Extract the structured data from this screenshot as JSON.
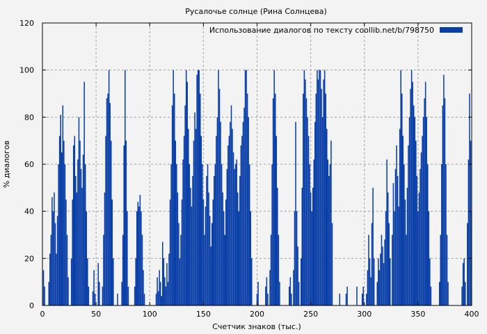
{
  "chart_data": {
    "type": "bar",
    "title": "Русалочье солнце (Рина Солнцева)",
    "xlabel": "Счетчик знаков (тыс.)",
    "ylabel": "% диалогов",
    "xlim": [
      0,
      400
    ],
    "ylim": [
      0,
      120
    ],
    "xticks": [
      0,
      50,
      100,
      150,
      200,
      250,
      300,
      350,
      400
    ],
    "yticks": [
      0,
      20,
      40,
      60,
      80,
      100,
      120
    ],
    "grid": true,
    "legend_position": "top-right",
    "color": "#0a3fa8",
    "series": [
      {
        "name": "Использование диалогов по тексту coollib.net/b/798750",
        "values": [
          [
            1,
            15
          ],
          [
            2,
            8
          ],
          [
            3,
            0
          ],
          [
            4,
            0
          ],
          [
            6,
            10
          ],
          [
            7,
            22
          ],
          [
            8,
            30
          ],
          [
            9,
            46
          ],
          [
            10,
            40
          ],
          [
            11,
            48
          ],
          [
            12,
            35
          ],
          [
            13,
            22
          ],
          [
            14,
            38
          ],
          [
            15,
            60
          ],
          [
            16,
            72
          ],
          [
            17,
            81
          ],
          [
            18,
            65
          ],
          [
            19,
            85
          ],
          [
            20,
            70
          ],
          [
            21,
            60
          ],
          [
            22,
            45
          ],
          [
            23,
            30
          ],
          [
            24,
            12
          ],
          [
            25,
            0
          ],
          [
            27,
            20
          ],
          [
            28,
            45
          ],
          [
            29,
            68
          ],
          [
            30,
            72
          ],
          [
            31,
            55
          ],
          [
            32,
            48
          ],
          [
            33,
            62
          ],
          [
            34,
            80
          ],
          [
            35,
            70
          ],
          [
            36,
            58
          ],
          [
            37,
            50
          ],
          [
            38,
            64
          ],
          [
            39,
            95
          ],
          [
            40,
            60
          ],
          [
            41,
            40
          ],
          [
            42,
            20
          ],
          [
            43,
            8
          ],
          [
            44,
            0
          ],
          [
            47,
            6
          ],
          [
            48,
            15
          ],
          [
            49,
            5
          ],
          [
            50,
            0
          ],
          [
            52,
            18
          ],
          [
            53,
            10
          ],
          [
            54,
            0
          ],
          [
            56,
            8
          ],
          [
            57,
            30
          ],
          [
            58,
            48
          ],
          [
            59,
            72
          ],
          [
            60,
            88
          ],
          [
            61,
            90
          ],
          [
            62,
            100
          ],
          [
            63,
            86
          ],
          [
            64,
            70
          ],
          [
            65,
            45
          ],
          [
            66,
            20
          ],
          [
            67,
            0
          ],
          [
            70,
            5
          ],
          [
            71,
            0
          ],
          [
            74,
            10
          ],
          [
            75,
            30
          ],
          [
            76,
            68
          ],
          [
            77,
            100
          ],
          [
            78,
            70
          ],
          [
            79,
            40
          ],
          [
            80,
            8
          ],
          [
            81,
            0
          ],
          [
            84,
            0
          ],
          [
            86,
            8
          ],
          [
            87,
            20
          ],
          [
            88,
            40
          ],
          [
            89,
            44
          ],
          [
            90,
            42
          ],
          [
            91,
            47
          ],
          [
            92,
            40
          ],
          [
            93,
            30
          ],
          [
            94,
            15
          ],
          [
            95,
            5
          ],
          [
            96,
            0
          ],
          [
            100,
            0
          ],
          [
            104,
            0
          ],
          [
            106,
            5
          ],
          [
            107,
            12
          ],
          [
            108,
            6
          ],
          [
            109,
            15
          ],
          [
            110,
            10
          ],
          [
            111,
            4
          ],
          [
            112,
            27
          ],
          [
            113,
            20
          ],
          [
            114,
            12
          ],
          [
            115,
            8
          ],
          [
            116,
            18
          ],
          [
            117,
            10
          ],
          [
            118,
            22
          ],
          [
            119,
            45
          ],
          [
            120,
            60
          ],
          [
            121,
            85
          ],
          [
            122,
            100
          ],
          [
            123,
            90
          ],
          [
            124,
            70
          ],
          [
            125,
            60
          ],
          [
            126,
            48
          ],
          [
            127,
            35
          ],
          [
            128,
            20
          ],
          [
            129,
            30
          ],
          [
            130,
            45
          ],
          [
            131,
            62
          ],
          [
            132,
            72
          ],
          [
            133,
            85
          ],
          [
            134,
            100
          ],
          [
            135,
            95
          ],
          [
            136,
            75
          ],
          [
            137,
            60
          ],
          [
            138,
            50
          ],
          [
            139,
            42
          ],
          [
            140,
            55
          ],
          [
            141,
            70
          ],
          [
            142,
            82
          ],
          [
            143,
            75
          ],
          [
            144,
            98
          ],
          [
            145,
            100
          ],
          [
            146,
            100
          ],
          [
            147,
            90
          ],
          [
            148,
            72
          ],
          [
            149,
            60
          ],
          [
            150,
            45
          ],
          [
            151,
            30
          ],
          [
            152,
            42
          ],
          [
            153,
            55
          ],
          [
            154,
            60
          ],
          [
            155,
            48
          ],
          [
            156,
            38
          ],
          [
            157,
            25
          ],
          [
            158,
            35
          ],
          [
            159,
            45
          ],
          [
            160,
            55
          ],
          [
            161,
            60
          ],
          [
            162,
            72
          ],
          [
            163,
            80
          ],
          [
            164,
            100
          ],
          [
            165,
            92
          ],
          [
            166,
            78
          ],
          [
            167,
            60
          ],
          [
            168,
            48
          ],
          [
            169,
            40
          ],
          [
            170,
            30
          ],
          [
            171,
            45
          ],
          [
            172,
            58
          ],
          [
            173,
            68
          ],
          [
            174,
            72
          ],
          [
            175,
            78
          ],
          [
            176,
            85
          ],
          [
            177,
            75
          ],
          [
            178,
            65
          ],
          [
            179,
            58
          ],
          [
            180,
            60
          ],
          [
            181,
            62
          ],
          [
            182,
            48
          ],
          [
            183,
            40
          ],
          [
            184,
            55
          ],
          [
            185,
            68
          ],
          [
            186,
            72
          ],
          [
            187,
            78
          ],
          [
            188,
            84
          ],
          [
            189,
            100
          ],
          [
            190,
            100
          ],
          [
            191,
            90
          ],
          [
            192,
            80
          ],
          [
            193,
            60
          ],
          [
            194,
            40
          ],
          [
            195,
            20
          ],
          [
            196,
            0
          ],
          [
            198,
            0
          ],
          [
            200,
            5
          ],
          [
            201,
            10
          ],
          [
            202,
            0
          ],
          [
            206,
            0
          ],
          [
            208,
            8
          ],
          [
            209,
            12
          ],
          [
            210,
            5
          ],
          [
            211,
            0
          ],
          [
            212,
            15
          ],
          [
            213,
            30
          ],
          [
            214,
            60
          ],
          [
            215,
            88
          ],
          [
            216,
            100
          ],
          [
            217,
            90
          ],
          [
            218,
            72
          ],
          [
            219,
            50
          ],
          [
            220,
            30
          ],
          [
            221,
            10
          ],
          [
            222,
            0
          ],
          [
            226,
            0
          ],
          [
            229,
            0
          ],
          [
            230,
            8
          ],
          [
            231,
            12
          ],
          [
            232,
            5
          ],
          [
            233,
            0
          ],
          [
            234,
            15
          ],
          [
            235,
            40
          ],
          [
            236,
            78
          ],
          [
            237,
            40
          ],
          [
            238,
            25
          ],
          [
            239,
            10
          ],
          [
            240,
            0
          ],
          [
            241,
            20
          ],
          [
            242,
            50
          ],
          [
            243,
            90
          ],
          [
            244,
            100
          ],
          [
            245,
            96
          ],
          [
            246,
            88
          ],
          [
            247,
            80
          ],
          [
            248,
            72
          ],
          [
            249,
            60
          ],
          [
            250,
            48
          ],
          [
            251,
            40
          ],
          [
            252,
            50
          ],
          [
            253,
            62
          ],
          [
            254,
            78
          ],
          [
            255,
            90
          ],
          [
            256,
            100
          ],
          [
            257,
            96
          ],
          [
            258,
            100
          ],
          [
            259,
            100
          ],
          [
            260,
            92
          ],
          [
            261,
            80
          ],
          [
            262,
            96
          ],
          [
            263,
            100
          ],
          [
            264,
            90
          ],
          [
            265,
            75
          ],
          [
            266,
            62
          ],
          [
            267,
            55
          ],
          [
            268,
            60
          ],
          [
            269,
            70
          ],
          [
            270,
            35
          ],
          [
            271,
            0
          ],
          [
            274,
            0
          ],
          [
            277,
            5
          ],
          [
            278,
            0
          ],
          [
            281,
            0
          ],
          [
            283,
            5
          ],
          [
            284,
            8
          ],
          [
            285,
            0
          ],
          [
            290,
            0
          ],
          [
            293,
            8
          ],
          [
            294,
            0
          ],
          [
            296,
            0
          ],
          [
            298,
            5
          ],
          [
            299,
            8
          ],
          [
            300,
            0
          ],
          [
            302,
            5
          ],
          [
            303,
            15
          ],
          [
            304,
            30
          ],
          [
            305,
            20
          ],
          [
            306,
            12
          ],
          [
            307,
            35
          ],
          [
            308,
            50
          ],
          [
            309,
            20
          ],
          [
            310,
            0
          ],
          [
            312,
            10
          ],
          [
            313,
            20
          ],
          [
            314,
            15
          ],
          [
            315,
            22
          ],
          [
            316,
            30
          ],
          [
            317,
            25
          ],
          [
            318,
            18
          ],
          [
            319,
            28
          ],
          [
            320,
            40
          ],
          [
            321,
            62
          ],
          [
            322,
            48
          ],
          [
            323,
            35
          ],
          [
            324,
            20
          ],
          [
            325,
            0
          ],
          [
            326,
            30
          ],
          [
            327,
            52
          ],
          [
            328,
            40
          ],
          [
            329,
            58
          ],
          [
            330,
            68
          ],
          [
            331,
            55
          ],
          [
            332,
            42
          ],
          [
            333,
            75
          ],
          [
            334,
            100
          ],
          [
            335,
            90
          ],
          [
            336,
            72
          ],
          [
            337,
            60
          ],
          [
            338,
            45
          ],
          [
            339,
            30
          ],
          [
            340,
            50
          ],
          [
            341,
            68
          ],
          [
            342,
            80
          ],
          [
            343,
            92
          ],
          [
            344,
            100
          ],
          [
            345,
            95
          ],
          [
            346,
            85
          ],
          [
            347,
            80
          ],
          [
            348,
            70
          ],
          [
            349,
            55
          ],
          [
            350,
            40
          ],
          [
            351,
            48
          ],
          [
            352,
            58
          ],
          [
            353,
            65
          ],
          [
            354,
            72
          ],
          [
            355,
            80
          ],
          [
            356,
            88
          ],
          [
            357,
            95
          ],
          [
            358,
            80
          ],
          [
            359,
            60
          ],
          [
            360,
            40
          ],
          [
            361,
            20
          ],
          [
            362,
            8
          ],
          [
            363,
            0
          ],
          [
            366,
            0
          ],
          [
            369,
            0
          ],
          [
            370,
            10
          ],
          [
            371,
            30
          ],
          [
            372,
            60
          ],
          [
            373,
            85
          ],
          [
            374,
            98
          ],
          [
            375,
            88
          ],
          [
            376,
            60
          ],
          [
            377,
            30
          ],
          [
            378,
            10
          ],
          [
            379,
            0
          ],
          [
            382,
            0
          ],
          [
            385,
            0
          ],
          [
            389,
            0
          ],
          [
            391,
            8
          ],
          [
            392,
            18
          ],
          [
            393,
            20
          ],
          [
            394,
            10
          ],
          [
            395,
            0
          ],
          [
            396,
            35
          ],
          [
            397,
            62
          ],
          [
            398,
            90
          ],
          [
            399,
            70
          ],
          [
            400,
            40
          ]
        ]
      }
    ]
  }
}
